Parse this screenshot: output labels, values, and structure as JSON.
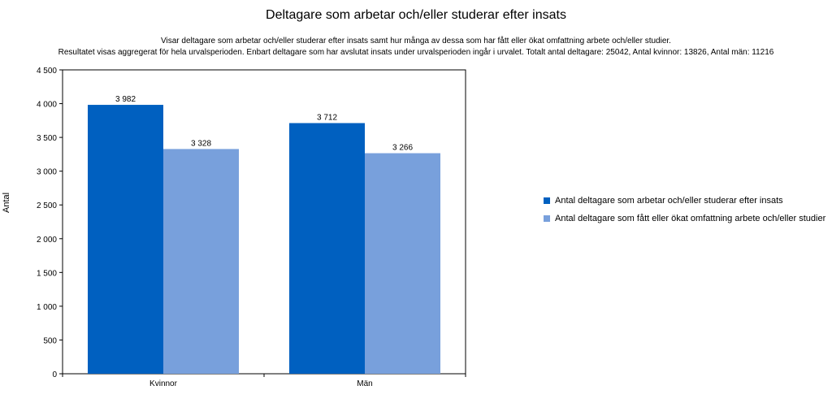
{
  "chart_data": {
    "type": "bar",
    "title": "Deltagare som arbetar och/eller studerar efter insats",
    "subtitle_line1": "Visar deltagare som arbetar och/eller studerar efter insats samt hur många av dessa som har fått eller ökat omfattning arbete och/eller studier.",
    "subtitle_line2": "Resultatet visas aggregerat för hela urvalsperioden. Enbart deltagare som har avslutat insats under urvalsperioden ingår i urvalet. Totalt antal deltagare: 25042, Antal kvinnor: 13826, Antal män: 11216",
    "xlabel": "",
    "ylabel": "Antal",
    "categories": [
      "Kvinnor",
      "Män"
    ],
    "series": [
      {
        "name": "Antal deltagare som arbetar och/eller studerar efter insats",
        "values": [
          3982,
          3712
        ],
        "labels": [
          "3 982",
          "3 712"
        ],
        "color": "#0060c0"
      },
      {
        "name": "Antal deltagare som fått eller ökat omfattning arbete och/eller studier",
        "values": [
          3328,
          3266
        ],
        "labels": [
          "3 328",
          "3 266"
        ],
        "color": "#78a0dc"
      }
    ],
    "ylim": [
      0,
      4500
    ],
    "yticks": [
      0,
      500,
      1000,
      1500,
      2000,
      2500,
      3000,
      3500,
      4000,
      4500
    ],
    "ytick_labels": [
      "0",
      "500",
      "1 000",
      "1 500",
      "2 000",
      "2 500",
      "3 000",
      "3 500",
      "4 000",
      "4 500"
    ],
    "grid": false,
    "legend_position": "right"
  }
}
